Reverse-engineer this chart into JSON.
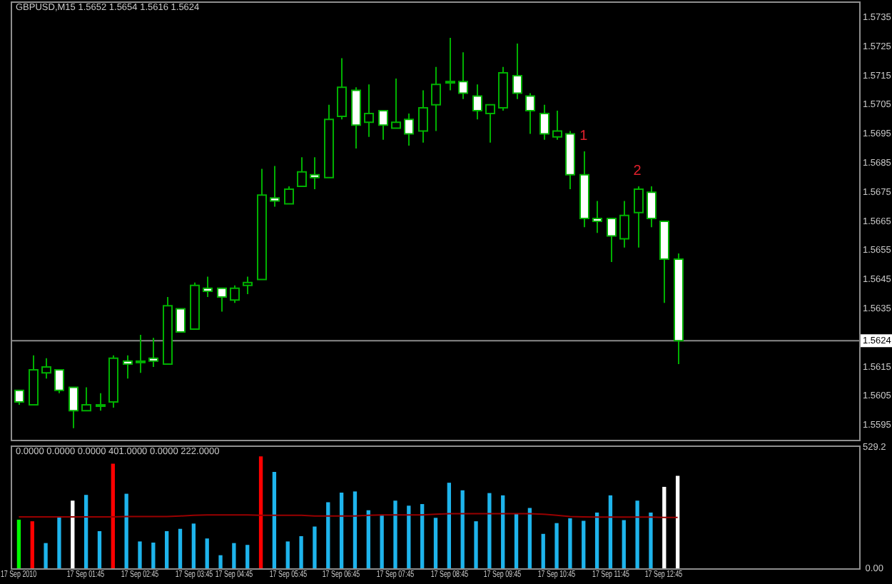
{
  "chart_data": [
    {
      "type": "candlestick",
      "title": "GBPUSD,M15 1.5652 1.5654 1.5616 1.5624",
      "categories": [
        null,
        null,
        null,
        null,
        null,
        null,
        null,
        null,
        null,
        null,
        null,
        null,
        null,
        null,
        null,
        null,
        null,
        null,
        null,
        null,
        null,
        null,
        null,
        null,
        null,
        null,
        null,
        null,
        null,
        null,
        null,
        null,
        null,
        null,
        null,
        null,
        null,
        null,
        null,
        null,
        null,
        null,
        null,
        null,
        null,
        null,
        null,
        null,
        null,
        null,
        null,
        null,
        null,
        null,
        null,
        null,
        null,
        null,
        null,
        null,
        null,
        null,
        null
      ],
      "ohlc": [
        [
          1.5607,
          1.5607,
          1.5602,
          1.5603
        ],
        [
          1.5602,
          1.5619,
          1.5602,
          1.5614
        ],
        [
          1.5613,
          1.5618,
          1.5611,
          1.5615
        ],
        [
          1.5614,
          1.5614,
          1.5606,
          1.5607
        ],
        [
          1.5608,
          1.5608,
          1.5594,
          1.56
        ],
        [
          1.56,
          1.5608,
          1.56,
          1.5602
        ],
        [
          1.5602,
          1.5606,
          1.56,
          1.5602
        ],
        [
          1.5603,
          1.5619,
          1.5601,
          1.5618
        ],
        [
          1.5617,
          1.5619,
          1.5611,
          1.5616
        ],
        [
          1.5617,
          1.5626,
          1.5613,
          1.5617
        ],
        [
          1.5618,
          1.5625,
          1.5615,
          1.5617
        ],
        [
          1.5616,
          1.5639,
          1.5616,
          1.5636
        ],
        [
          1.5635,
          1.5635,
          1.5627,
          1.5627
        ],
        [
          1.5628,
          1.5644,
          1.5628,
          1.5643
        ],
        [
          1.5642,
          1.5646,
          1.5639,
          1.5641
        ],
        [
          1.5642,
          1.5642,
          1.5634,
          1.5639
        ],
        [
          1.5638,
          1.5643,
          1.5637,
          1.5642
        ],
        [
          1.5643,
          1.5646,
          1.564,
          1.5644
        ],
        [
          1.5645,
          1.5683,
          1.5645,
          1.5674
        ],
        [
          1.5673,
          1.5684,
          1.567,
          1.5672
        ],
        [
          1.5671,
          1.5677,
          1.5671,
          1.5676
        ],
        [
          1.5677,
          1.5687,
          1.5677,
          1.5682
        ],
        [
          1.5681,
          1.5687,
          1.5676,
          1.568
        ],
        [
          1.568,
          1.5705,
          1.568,
          1.57
        ],
        [
          1.5701,
          1.5721,
          1.57,
          1.5711
        ],
        [
          1.571,
          1.5711,
          1.569,
          1.5698
        ],
        [
          1.5699,
          1.5712,
          1.5694,
          1.5702
        ],
        [
          1.5703,
          1.5703,
          1.5693,
          1.5698
        ],
        [
          1.5697,
          1.5714,
          1.5697,
          1.5699
        ],
        [
          1.57,
          1.5702,
          1.5691,
          1.5695
        ],
        [
          1.5696,
          1.571,
          1.5692,
          1.5704
        ],
        [
          1.5705,
          1.5718,
          1.5696,
          1.5712
        ],
        [
          1.5713,
          1.5728,
          1.571,
          1.5713
        ],
        [
          1.5713,
          1.5723,
          1.5707,
          1.5709
        ],
        [
          1.5708,
          1.5712,
          1.57,
          1.5703
        ],
        [
          1.5702,
          1.5705,
          1.5692,
          1.5705
        ],
        [
          1.5704,
          1.5718,
          1.5703,
          1.5716
        ],
        [
          1.5715,
          1.5726,
          1.5707,
          1.5709
        ],
        [
          1.5708,
          1.5709,
          1.5695,
          1.5703
        ],
        [
          1.5702,
          1.5705,
          1.5693,
          1.5695
        ],
        [
          1.5694,
          1.5703,
          1.5693,
          1.5696
        ],
        [
          1.5695,
          1.5696,
          1.5676,
          1.5681
        ],
        [
          1.5681,
          1.5689,
          1.5663,
          1.5666
        ],
        [
          1.5666,
          1.5672,
          1.5661,
          1.5665
        ],
        [
          1.5666,
          1.5666,
          1.5651,
          1.566
        ],
        [
          1.5659,
          1.5672,
          1.5656,
          1.5667
        ],
        [
          1.5668,
          1.5677,
          1.5656,
          1.5676
        ],
        [
          1.5675,
          1.5677,
          1.5663,
          1.5666
        ],
        [
          1.5665,
          1.5665,
          1.5637,
          1.5652
        ],
        [
          1.5652,
          1.5654,
          1.5616,
          1.5624
        ],
        null,
        null,
        null,
        null,
        null,
        null,
        null,
        null,
        null,
        null,
        null,
        null,
        null
      ],
      "color": "#00b000",
      "value_labels": [
        null,
        null,
        null,
        null,
        null,
        null,
        null,
        null,
        null,
        null,
        null,
        null,
        null,
        null,
        null,
        null,
        null,
        null,
        null,
        null,
        null,
        null,
        null,
        null,
        null,
        null,
        null,
        null,
        null,
        null,
        null,
        null,
        null,
        null,
        null,
        null,
        null,
        null,
        null,
        null,
        null,
        null,
        "1",
        null,
        null,
        null,
        "2",
        null,
        null,
        null,
        null,
        null,
        null,
        null,
        null,
        null,
        null,
        null,
        null,
        null,
        null,
        null,
        null
      ],
      "ylim": [
        1.559,
        1.574
      ],
      "yticks": [
        1.5595,
        1.5605,
        1.5615,
        1.5635,
        1.5645,
        1.5655,
        1.5665,
        1.5675,
        1.5685,
        1.5695,
        1.5705,
        1.5715,
        1.5725,
        1.5735
      ],
      "ref_lines": [
        {
          "axis": "y",
          "value": 1.5624,
          "label": "1.5624",
          "color": "#8a8a8a"
        }
      ],
      "tick_labels": "y"
    },
    {
      "type": "bar",
      "title": "0.0000 0.0000 0.0000 401.0000 0.0000 222.0000",
      "categories": [
        "17 Sep 2010",
        null,
        null,
        null,
        null,
        "17 Sep 01:45",
        null,
        null,
        null,
        "17 Sep 02:45",
        null,
        null,
        null,
        "17 Sep 03:45",
        null,
        null,
        "17 Sep 04:45",
        null,
        null,
        null,
        "17 Sep 05:45",
        null,
        null,
        null,
        "17 Sep 06:45",
        null,
        null,
        null,
        "17 Sep 07:45",
        null,
        null,
        null,
        "17 Sep 08:45",
        null,
        null,
        null,
        "17 Sep 09:45",
        null,
        null,
        null,
        "17 Sep 10:45",
        null,
        null,
        null,
        "17 Sep 11:45",
        null,
        null,
        null,
        "17 Sep 12:45",
        null,
        null,
        null,
        null,
        null,
        null,
        null,
        null,
        null,
        null,
        null,
        null,
        null,
        null
      ],
      "series": [
        {
          "values": [
            210,
            203,
            108,
            221,
            293,
            318,
            160,
            454,
            323,
            115,
            110,
            160,
            170,
            193,
            128,
            55,
            108,
            100,
            486,
            418,
            115,
            138,
            180,
            286,
            328,
            333,
            251,
            228,
            293,
            271,
            278,
            218,
            371,
            338,
            203,
            326,
            316,
            236,
            261,
            148,
            195,
            216,
            205,
            241,
            316,
            208,
            293,
            241,
            353,
            401,
            null,
            null,
            null,
            null,
            null,
            null,
            null,
            null,
            null,
            null,
            null,
            null,
            null
          ],
          "colors": [
            "#00ff00",
            "#ff0000",
            "#1eb4ec",
            "#1eb4ec",
            "#ffffff",
            "#1eb4ec",
            "#1eb4ec",
            "#ff0000",
            "#1eb4ec",
            "#1eb4ec",
            "#1eb4ec",
            "#1eb4ec",
            "#1eb4ec",
            "#1eb4ec",
            "#1eb4ec",
            "#1eb4ec",
            "#1eb4ec",
            "#1eb4ec",
            "#ff0000",
            "#1eb4ec",
            "#1eb4ec",
            "#1eb4ec",
            "#1eb4ec",
            "#1eb4ec",
            "#1eb4ec",
            "#1eb4ec",
            "#1eb4ec",
            "#1eb4ec",
            "#1eb4ec",
            "#1eb4ec",
            "#1eb4ec",
            "#1eb4ec",
            "#1eb4ec",
            "#1eb4ec",
            "#1eb4ec",
            "#1eb4ec",
            "#1eb4ec",
            "#1eb4ec",
            "#1eb4ec",
            "#1eb4ec",
            "#1eb4ec",
            "#1eb4ec",
            "#1eb4ec",
            "#1eb4ec",
            "#1eb4ec",
            "#1eb4ec",
            "#1eb4ec",
            "#1eb4ec",
            "#ffffff",
            "#ffffff",
            null,
            null,
            null,
            null,
            null,
            null,
            null,
            null,
            null,
            null,
            null,
            null,
            null
          ]
        },
        {
          "type": "line",
          "color": "#990000",
          "values": [
            224,
            224,
            224,
            224,
            224,
            224,
            224,
            224,
            226,
            226,
            226,
            226,
            228,
            231,
            233,
            233,
            233,
            233,
            231,
            231,
            231,
            231,
            228,
            228,
            228,
            228,
            231,
            233,
            233,
            233,
            233,
            236,
            238,
            238,
            238,
            238,
            238,
            238,
            238,
            236,
            231,
            226,
            224,
            223,
            223,
            223,
            223,
            223,
            222,
            222,
            null,
            null,
            null,
            null,
            null,
            null,
            null,
            null,
            null,
            null,
            null,
            null,
            null
          ]
        }
      ],
      "ylim": [
        0,
        529.2
      ],
      "yticks": [
        {
          "value": 0,
          "label": "0.00"
        },
        529.2
      ]
    }
  ]
}
